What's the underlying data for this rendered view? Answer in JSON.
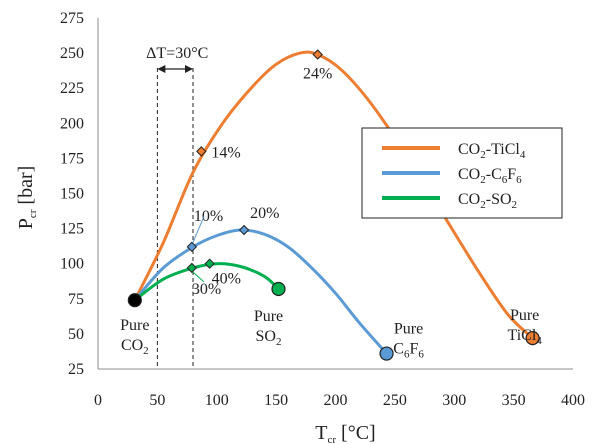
{
  "chart_data": {
    "type": "line",
    "xlabel": {
      "main": "T",
      "sub": "cr",
      "unit": " [°C]"
    },
    "ylabel": {
      "main": "P",
      "sub": "cr",
      "unit": " [bar]"
    },
    "xlim": [
      0,
      400
    ],
    "ylim": [
      25,
      275
    ],
    "xticks": [
      0,
      50,
      100,
      150,
      200,
      250,
      300,
      350,
      400
    ],
    "yticks": [
      25,
      50,
      75,
      100,
      125,
      150,
      175,
      200,
      225,
      250,
      275
    ],
    "grid": false,
    "legend_position": "right",
    "series": [
      {
        "name_parts": [
          [
            "CO",
            ""
          ],
          [
            "2",
            "sub"
          ],
          [
            "-TiCl",
            ""
          ],
          [
            "4",
            "sub"
          ]
        ],
        "color": "#ED7D31",
        "x": [
          31,
          55,
          80,
          105,
          130,
          150,
          170,
          185,
          205,
          230,
          260,
          290,
          320,
          345,
          366
        ],
        "y": [
          74,
          115,
          165,
          200,
          226,
          242,
          250,
          249,
          238,
          214,
          177,
          136,
          95,
          64,
          47
        ]
      },
      {
        "name_parts": [
          [
            "CO",
            ""
          ],
          [
            "2",
            "sub"
          ],
          [
            "-C",
            ""
          ],
          [
            "6",
            "sub"
          ],
          [
            "F",
            ""
          ],
          [
            "6",
            "sub"
          ]
        ],
        "color": "#5B9BD5",
        "x": [
          31,
          55,
          80,
          100,
          120,
          140,
          160,
          180,
          200,
          220,
          243
        ],
        "y": [
          74,
          97,
          112,
          120,
          124,
          121,
          112,
          97,
          79,
          58,
          36
        ]
      },
      {
        "name_parts": [
          [
            "CO",
            ""
          ],
          [
            "2",
            "sub"
          ],
          [
            "-SO",
            ""
          ],
          [
            "2",
            "sub"
          ]
        ],
        "color": "#00B050",
        "x": [
          31,
          55,
          80,
          100,
          120,
          140,
          152
        ],
        "y": [
          74,
          89,
          97,
          100,
          98,
          91,
          82
        ]
      }
    ],
    "markers": [
      {
        "series": 0,
        "x": 185,
        "y": 249,
        "label": "24%"
      },
      {
        "series": 0,
        "x": 87,
        "y": 180,
        "label": "14%"
      },
      {
        "series": 1,
        "x": 79,
        "y": 112,
        "label": "10%"
      },
      {
        "series": 1,
        "x": 123,
        "y": 124,
        "label": "20%"
      },
      {
        "series": 2,
        "x": 79,
        "y": 97,
        "label": "30%"
      },
      {
        "series": 2,
        "x": 94,
        "y": 100,
        "label": "40%"
      }
    ],
    "pure_points": [
      {
        "x": 31,
        "y": 74,
        "color": "#000000",
        "line1": [
          [
            "Pure",
            ""
          ]
        ],
        "line2": [
          [
            "CO",
            ""
          ],
          [
            "2",
            "sub"
          ]
        ]
      },
      {
        "x": 152,
        "y": 82,
        "color": "#00B050",
        "line1": [
          [
            "Pure",
            ""
          ]
        ],
        "line2": [
          [
            "SO",
            ""
          ],
          [
            "2",
            "sub"
          ]
        ]
      },
      {
        "x": 243,
        "y": 36,
        "color": "#5B9BD5",
        "line1": [
          [
            "Pure",
            ""
          ]
        ],
        "line2": [
          [
            "C",
            ""
          ],
          [
            "6",
            "sub"
          ],
          [
            "F",
            ""
          ],
          [
            "6",
            "sub"
          ]
        ]
      },
      {
        "x": 366,
        "y": 47,
        "color": "#ED7D31",
        "line1": [
          [
            "Pure",
            ""
          ]
        ],
        "line2": [
          [
            "TiCl",
            ""
          ],
          [
            "4",
            "sub"
          ]
        ]
      }
    ],
    "delta_t": {
      "label": "ΔT=30°C",
      "x1": 50,
      "x2": 80
    }
  }
}
